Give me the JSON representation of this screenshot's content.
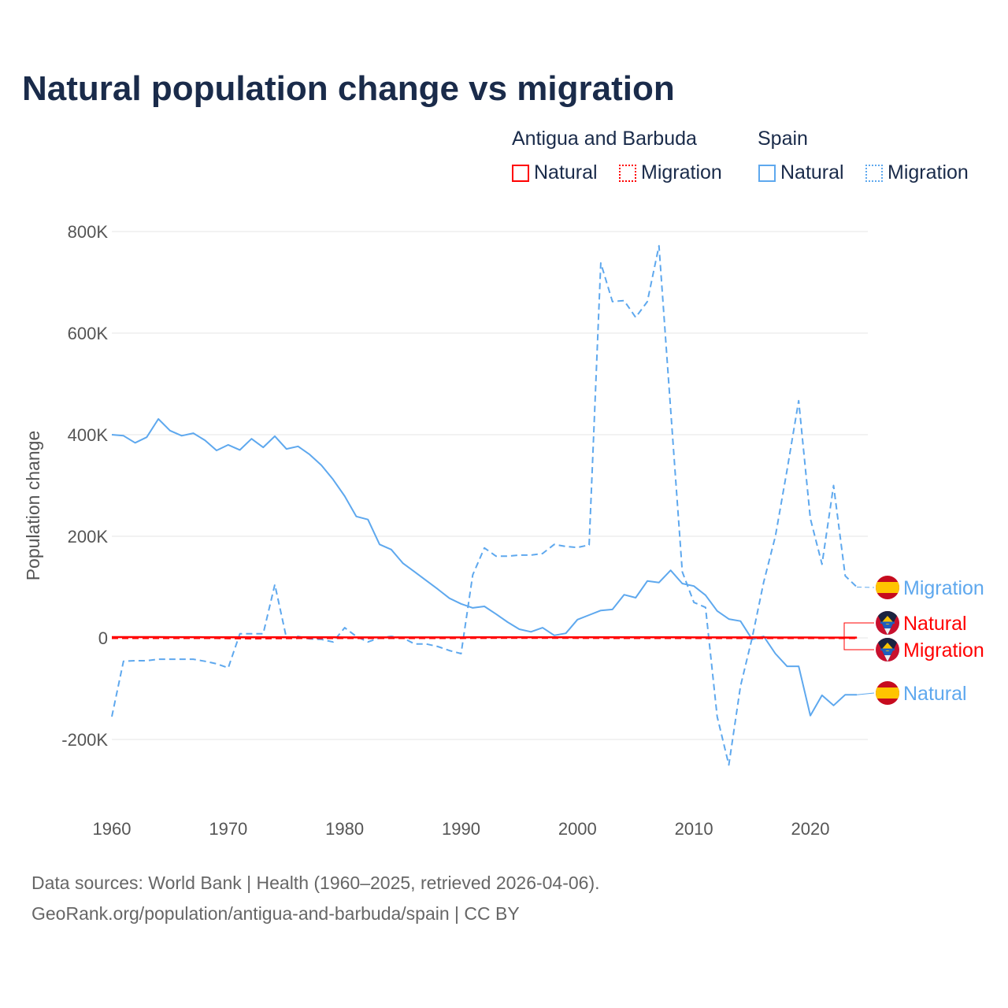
{
  "title": "Natural population change vs migration",
  "legend": {
    "groups": [
      {
        "label": "Antigua and Barbuda",
        "items": [
          {
            "label": "Natural",
            "style": "solid",
            "color": "#ff0000"
          },
          {
            "label": "Migration",
            "style": "dotted",
            "color": "#ff0000"
          }
        ]
      },
      {
        "label": "Spain",
        "items": [
          {
            "label": "Natural",
            "style": "solid",
            "color": "#5ea8ee"
          },
          {
            "label": "Migration",
            "style": "dotted",
            "color": "#5ea8ee"
          }
        ]
      }
    ]
  },
  "footer": {
    "line1": "Data sources: World Bank | Health (1960–2025, retrieved 2026-04-06).",
    "line2": "GeoRank.org/population/antigua-and-barbuda/spain | CC BY"
  },
  "chart_data": {
    "type": "line",
    "title": "Natural population change vs migration",
    "xlabel": "",
    "ylabel": "Population change",
    "xlim": [
      1960,
      2025
    ],
    "ylim": [
      -300000,
      800000
    ],
    "yticks": [
      -200000,
      0,
      200000,
      400000,
      600000,
      800000
    ],
    "ytick_labels": [
      "-200K",
      "0",
      "200K",
      "400K",
      "600K",
      "800K"
    ],
    "xticks": [
      1960,
      1970,
      1980,
      1990,
      2000,
      2010,
      2020
    ],
    "xtick_labels": [
      "1960",
      "1970",
      "1980",
      "1990",
      "2000",
      "2010",
      "2020"
    ],
    "grid": true,
    "x_start": 1960,
    "series": [
      {
        "name": "Spain Natural",
        "end_label": "Natural",
        "color": "#5ea8ee",
        "dash": "solid",
        "flag": "spain",
        "values_k": [
          400,
          398,
          384,
          395,
          431,
          408,
          398,
          403,
          389,
          369,
          380,
          370,
          392,
          375,
          397,
          372,
          377,
          361,
          340,
          312,
          279,
          239,
          233,
          184,
          174,
          147,
          130,
          113,
          96,
          78,
          67,
          59,
          62,
          47,
          31,
          17,
          12,
          20,
          5,
          9,
          36,
          45,
          54,
          56,
          85,
          79,
          112,
          109,
          133,
          107,
          102,
          84,
          53,
          37,
          33,
          -3,
          3,
          -31,
          -56,
          -56,
          -153,
          -113,
          -133,
          -112,
          -112
        ]
      },
      {
        "name": "Spain Migration",
        "end_label": "Migration",
        "color": "#5ea8ee",
        "dash": "dashed",
        "flag": "spain",
        "values_k": [
          -155,
          -46,
          -45,
          -45,
          -42,
          -42,
          -42,
          -42,
          -46,
          -51,
          -59,
          8,
          8,
          8,
          105,
          0,
          3,
          -2,
          -3,
          -8,
          20,
          3,
          -8,
          0,
          3,
          0,
          -12,
          -12,
          -17,
          -25,
          -31,
          124,
          177,
          161,
          161,
          163,
          163,
          166,
          184,
          180,
          178,
          183,
          738,
          662,
          664,
          631,
          662,
          772,
          450,
          130,
          70,
          60,
          -155,
          -250,
          -95,
          0,
          110,
          200,
          330,
          467,
          235,
          145,
          300,
          122,
          100
        ]
      },
      {
        "name": "Antigua and Barbuda Natural",
        "end_label": "Natural",
        "color": "#ff0000",
        "dash": "solid",
        "flag": "antigua",
        "values_k": [
          1.5,
          1.5,
          1.5,
          1.5,
          1.5,
          1.4,
          1.4,
          1.4,
          1.3,
          1.3,
          1.3,
          1.2,
          1.2,
          1.2,
          1.2,
          1.2,
          1.1,
          1.1,
          1.1,
          1.1,
          1.0,
          1.0,
          1.0,
          1.0,
          1.0,
          1.0,
          1.0,
          1.0,
          1.0,
          1.0,
          1.0,
          1.1,
          1.1,
          1.1,
          1.1,
          1.1,
          1.1,
          1.1,
          1.1,
          1.1,
          1.1,
          1.1,
          1.1,
          1.1,
          1.1,
          1.1,
          1.1,
          1.1,
          1.1,
          1.1,
          1.0,
          1.0,
          1.0,
          0.9,
          0.9,
          0.9,
          0.9,
          0.8,
          0.8,
          0.8,
          0.7,
          0.6,
          0.6,
          0.6,
          0.6
        ]
      },
      {
        "name": "Antigua and Barbuda Migration",
        "end_label": "Migration",
        "color": "#ff0000",
        "dash": "dashed",
        "flag": "antigua",
        "values_k": [
          -0.5,
          -0.5,
          -0.5,
          -0.5,
          -0.5,
          -0.5,
          -0.5,
          -0.5,
          -0.5,
          -0.5,
          -0.8,
          -1.0,
          -1.2,
          -1.0,
          -0.8,
          -0.6,
          -0.5,
          -0.5,
          -0.5,
          -0.5,
          -0.5,
          -0.5,
          -0.5,
          -0.5,
          -0.5,
          -0.5,
          -0.5,
          -0.5,
          -0.5,
          -0.5,
          -0.3,
          -0.2,
          -0.1,
          0,
          0,
          0,
          0,
          0,
          0,
          0,
          -0.1,
          -0.2,
          -0.3,
          -0.3,
          -0.3,
          -0.3,
          -0.3,
          -0.3,
          -0.3,
          -0.3,
          -0.3,
          -0.3,
          -0.3,
          -0.3,
          -0.3,
          -0.3,
          -0.3,
          -0.3,
          -0.3,
          -0.3,
          -0.3,
          -0.3,
          -0.3,
          -0.3,
          -0.3
        ]
      }
    ]
  }
}
